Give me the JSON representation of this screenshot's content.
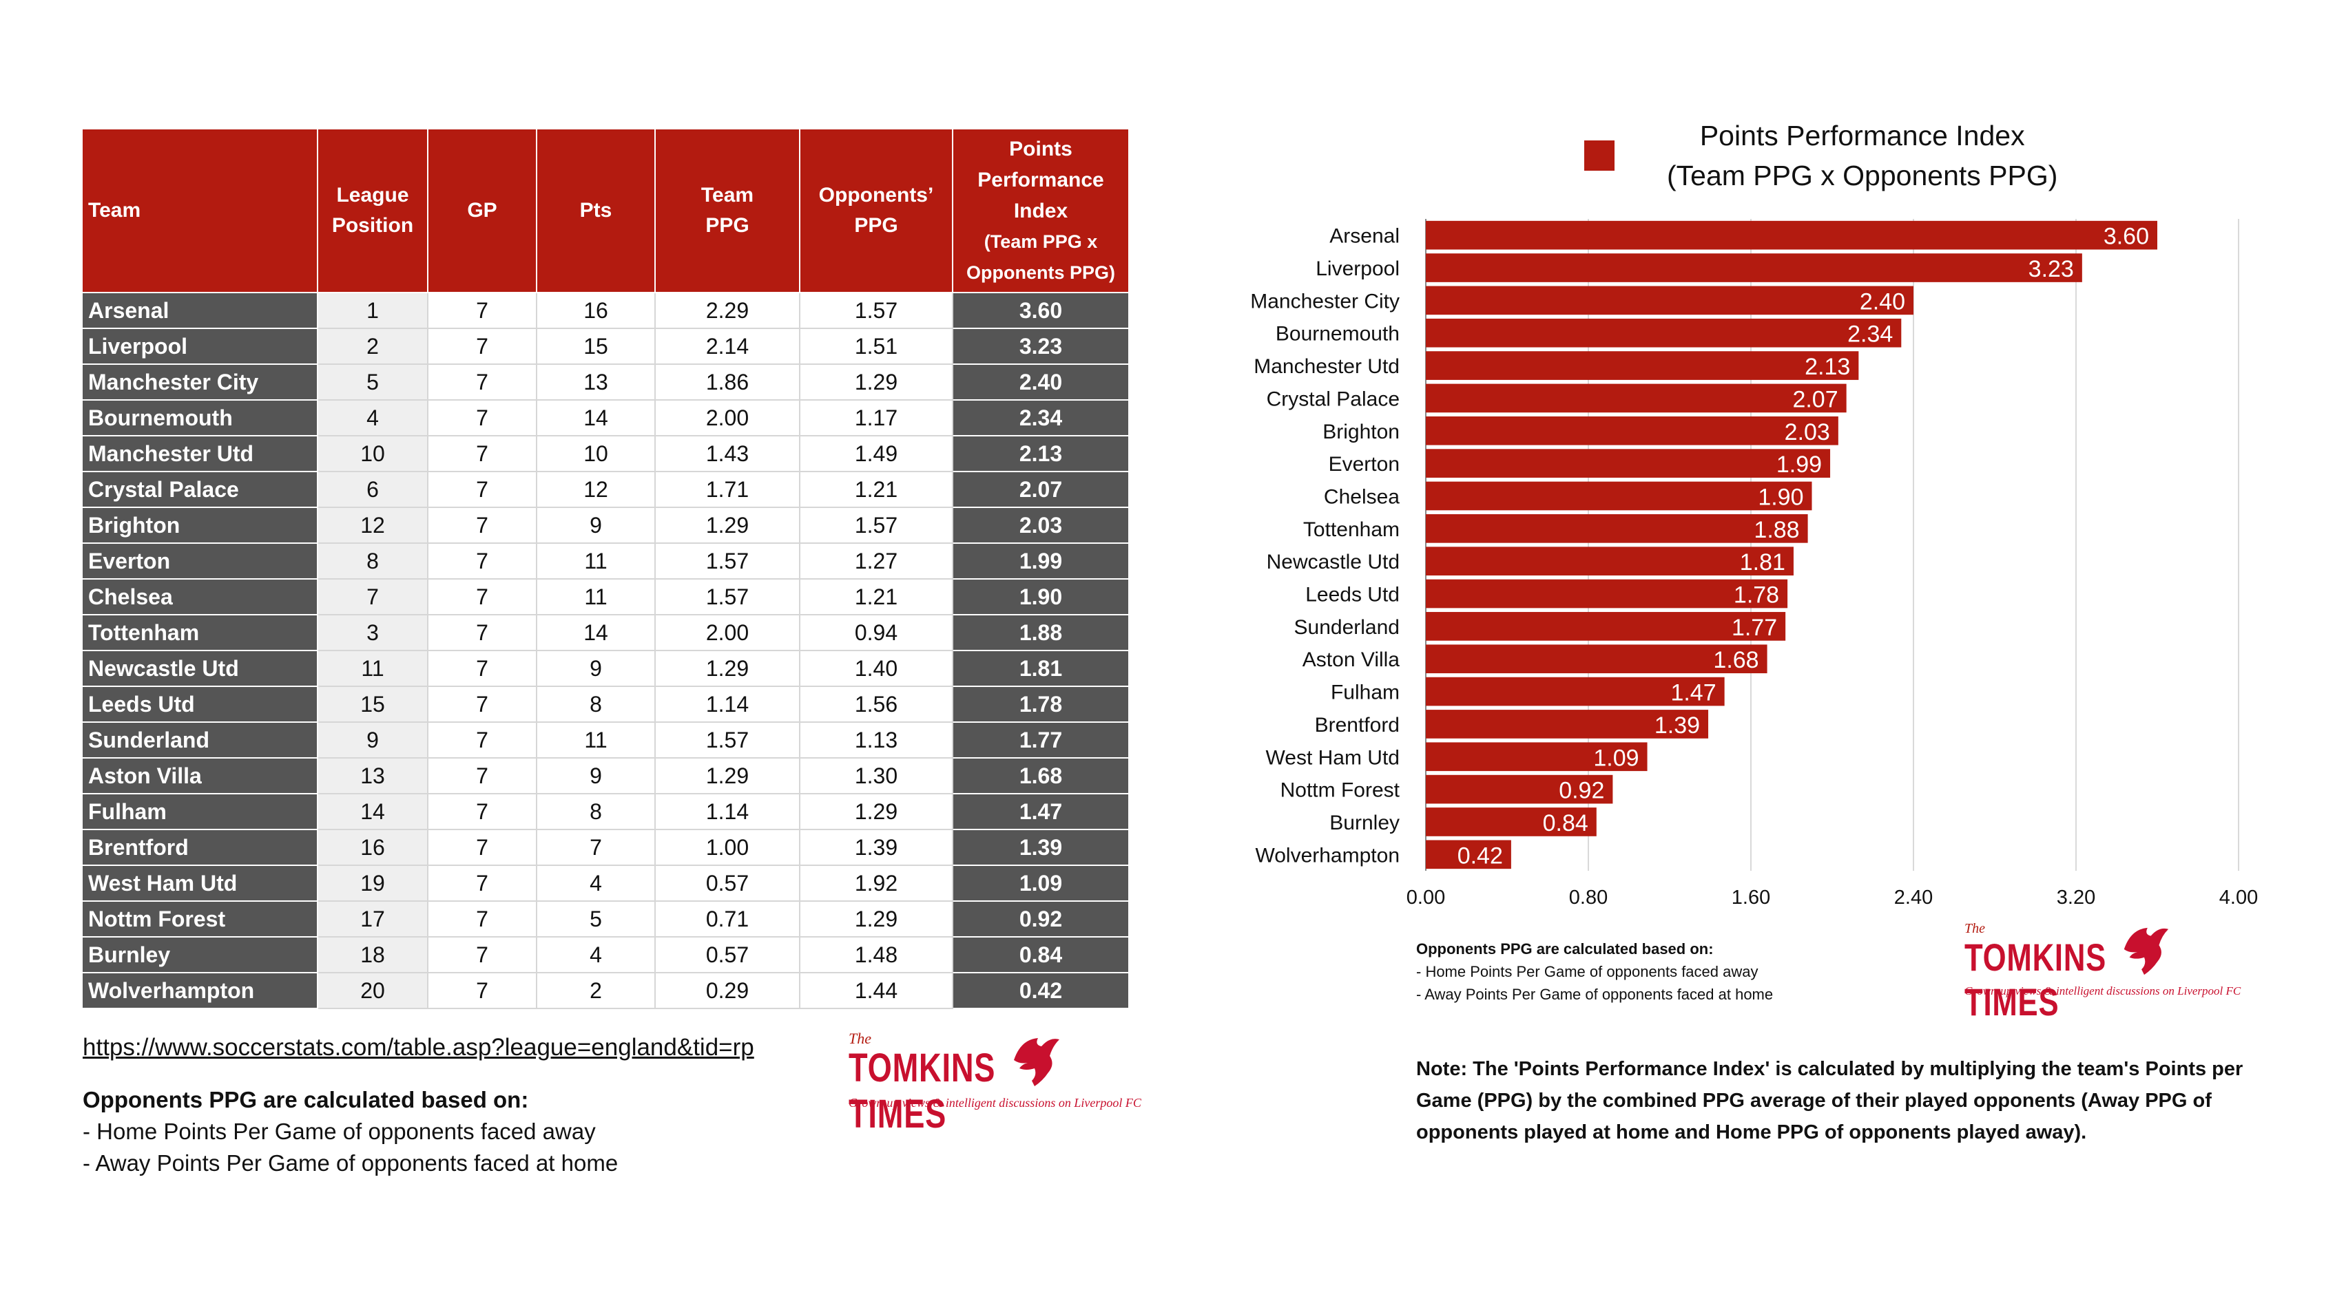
{
  "table": {
    "headers": {
      "team": "Team",
      "league_position_1": "League",
      "league_position_2": "Position",
      "gp": "GP",
      "pts": "Pts",
      "team_ppg_1": "Team",
      "team_ppg_2": "PPG",
      "opp_ppg_1": "Opponents’",
      "opp_ppg_2": "PPG",
      "ppi_1": "Points",
      "ppi_2": "Performance",
      "ppi_3": "Index",
      "ppi_4": "(Team PPG x",
      "ppi_5": "Opponents PPG)"
    },
    "rows": [
      {
        "team": "Arsenal",
        "pos": "1",
        "gp": "7",
        "pts": "16",
        "ppg": "2.29",
        "opp": "1.57",
        "ppi": "3.60"
      },
      {
        "team": "Liverpool",
        "pos": "2",
        "gp": "7",
        "pts": "15",
        "ppg": "2.14",
        "opp": "1.51",
        "ppi": "3.23"
      },
      {
        "team": "Manchester City",
        "pos": "5",
        "gp": "7",
        "pts": "13",
        "ppg": "1.86",
        "opp": "1.29",
        "ppi": "2.40"
      },
      {
        "team": "Bournemouth",
        "pos": "4",
        "gp": "7",
        "pts": "14",
        "ppg": "2.00",
        "opp": "1.17",
        "ppi": "2.34"
      },
      {
        "team": "Manchester Utd",
        "pos": "10",
        "gp": "7",
        "pts": "10",
        "ppg": "1.43",
        "opp": "1.49",
        "ppi": "2.13"
      },
      {
        "team": "Crystal Palace",
        "pos": "6",
        "gp": "7",
        "pts": "12",
        "ppg": "1.71",
        "opp": "1.21",
        "ppi": "2.07"
      },
      {
        "team": "Brighton",
        "pos": "12",
        "gp": "7",
        "pts": "9",
        "ppg": "1.29",
        "opp": "1.57",
        "ppi": "2.03"
      },
      {
        "team": "Everton",
        "pos": "8",
        "gp": "7",
        "pts": "11",
        "ppg": "1.57",
        "opp": "1.27",
        "ppi": "1.99"
      },
      {
        "team": "Chelsea",
        "pos": "7",
        "gp": "7",
        "pts": "11",
        "ppg": "1.57",
        "opp": "1.21",
        "ppi": "1.90"
      },
      {
        "team": "Tottenham",
        "pos": "3",
        "gp": "7",
        "pts": "14",
        "ppg": "2.00",
        "opp": "0.94",
        "ppi": "1.88"
      },
      {
        "team": "Newcastle Utd",
        "pos": "11",
        "gp": "7",
        "pts": "9",
        "ppg": "1.29",
        "opp": "1.40",
        "ppi": "1.81"
      },
      {
        "team": "Leeds Utd",
        "pos": "15",
        "gp": "7",
        "pts": "8",
        "ppg": "1.14",
        "opp": "1.56",
        "ppi": "1.78"
      },
      {
        "team": "Sunderland",
        "pos": "9",
        "gp": "7",
        "pts": "11",
        "ppg": "1.57",
        "opp": "1.13",
        "ppi": "1.77"
      },
      {
        "team": "Aston Villa",
        "pos": "13",
        "gp": "7",
        "pts": "9",
        "ppg": "1.29",
        "opp": "1.30",
        "ppi": "1.68"
      },
      {
        "team": "Fulham",
        "pos": "14",
        "gp": "7",
        "pts": "8",
        "ppg": "1.14",
        "opp": "1.29",
        "ppi": "1.47"
      },
      {
        "team": "Brentford",
        "pos": "16",
        "gp": "7",
        "pts": "7",
        "ppg": "1.00",
        "opp": "1.39",
        "ppi": "1.39"
      },
      {
        "team": "West Ham Utd",
        "pos": "19",
        "gp": "7",
        "pts": "4",
        "ppg": "0.57",
        "opp": "1.92",
        "ppi": "1.09"
      },
      {
        "team": "Nottm Forest",
        "pos": "17",
        "gp": "7",
        "pts": "5",
        "ppg": "0.71",
        "opp": "1.29",
        "ppi": "0.92"
      },
      {
        "team": "Burnley",
        "pos": "18",
        "gp": "7",
        "pts": "4",
        "ppg": "0.57",
        "opp": "1.48",
        "ppi": "0.84"
      },
      {
        "team": "Wolverhampton",
        "pos": "20",
        "gp": "7",
        "pts": "2",
        "ppg": "0.29",
        "opp": "1.44",
        "ppi": "0.42"
      }
    ]
  },
  "left_footer": {
    "source_url": "https://www.soccerstats.com/table.asp?league=england&tid=rp",
    "note_heading": "Opponents PPG are calculated based on:",
    "note_line1": "- Home Points Per Game of opponents faced away",
    "note_line2": "- Away Points Per Game of opponents faced at home"
  },
  "logo": {
    "the": "The",
    "name": "TOMKINS TIMES",
    "tagline": "Grown-up views & intelligent discussions on Liverpool FC"
  },
  "chart_data": {
    "type": "bar",
    "orientation": "horizontal",
    "title_line1": "Points Performance Index",
    "title_line2": "(Team PPG x Opponents PPG)",
    "legend": "top-left",
    "categories": [
      "Arsenal",
      "Liverpool",
      "Manchester City",
      "Bournemouth",
      "Manchester Utd",
      "Crystal Palace",
      "Brighton",
      "Everton",
      "Chelsea",
      "Tottenham",
      "Newcastle Utd",
      "Leeds Utd",
      "Sunderland",
      "Aston Villa",
      "Fulham",
      "Brentford",
      "West Ham Utd",
      "Nottm Forest",
      "Burnley",
      "Wolverhampton"
    ],
    "values": [
      3.6,
      3.23,
      2.4,
      2.34,
      2.13,
      2.07,
      2.03,
      1.99,
      1.9,
      1.88,
      1.81,
      1.78,
      1.77,
      1.68,
      1.47,
      1.39,
      1.09,
      0.92,
      0.84,
      0.42
    ],
    "xlim": [
      0,
      4.0
    ],
    "xticks": [
      "0.00",
      "0.80",
      "1.60",
      "2.40",
      "3.20",
      "4.00"
    ],
    "grid": true,
    "bar_color": "#b31b10"
  },
  "right_footer": {
    "note_heading": "Opponents PPG are calculated based on:",
    "note_line1": "- Home Points Per Game of opponents faced away",
    "note_line2": "- Away Points Per Game of opponents faced at home",
    "main_note": "Note: The 'Points Performance Index' is calculated by multiplying the team's Points per Game (PPG) by the combined PPG average of their played opponents (Away PPG of opponents played at home and Home PPG of opponents played away)."
  }
}
